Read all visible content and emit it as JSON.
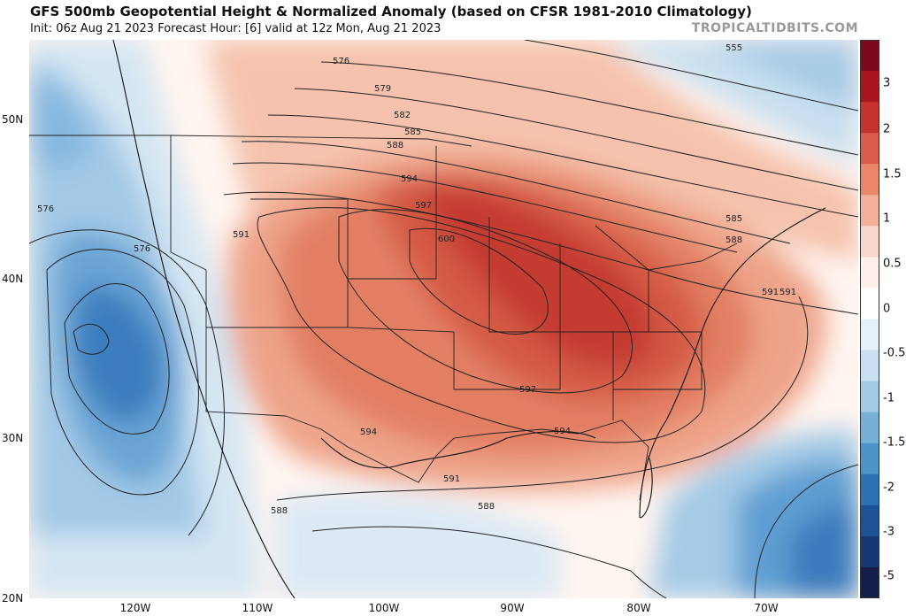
{
  "title": "GFS 500mb Geopotential Height & Normalized Anomaly (based on CFSR 1981-2010 Climatology)",
  "subtitle": "Init: 06z Aug 21 2023   Forecast Hour: [6]   valid at 12z Mon, Aug 21 2023",
  "brand": "TROPICALTIDBITS.COM",
  "lat_labels": [
    "50N",
    "40N",
    "30N",
    "20N"
  ],
  "lon_labels": [
    "120W",
    "110W",
    "100W",
    "90W",
    "80W",
    "70W"
  ],
  "contour_labels": [
    "555",
    "576",
    "579",
    "582",
    "585",
    "588",
    "594",
    "597",
    "600",
    "576",
    "576",
    "591",
    "591",
    "585",
    "588",
    "591",
    "597",
    "594",
    "594",
    "591",
    "588",
    "588"
  ],
  "colorbar": {
    "labels": [
      "3",
      "2",
      "1.5",
      "1",
      "0.5",
      "0",
      "-0.5",
      "-1",
      "-1.5",
      "-2",
      "-3",
      "-5"
    ],
    "colors": [
      "#7a0a1c",
      "#a8171f",
      "#c7312e",
      "#dc5a49",
      "#ea8669",
      "#f3b199",
      "#f9d6c8",
      "#fdf0ea",
      "#ffffff",
      "#e6f0f8",
      "#c8e0f0",
      "#a3cbe6",
      "#76b0d9",
      "#4c93c9",
      "#2d73b3",
      "#1c5396",
      "#163872",
      "#131f4a"
    ]
  },
  "colors": {
    "warm": "#e0604c",
    "cool": "#3d7fbf"
  }
}
